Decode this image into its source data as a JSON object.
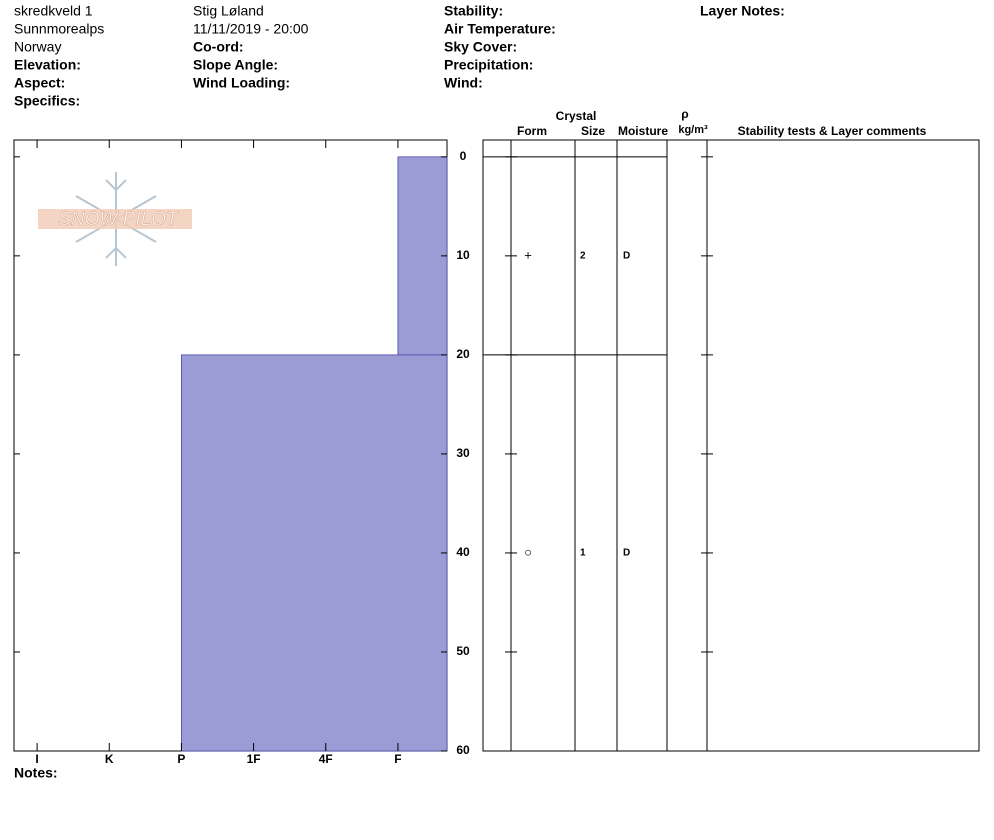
{
  "header": {
    "columns": [
      [
        "skredkveld 1",
        "Sunnmorealps",
        "Norway",
        "Elevation:",
        "Aspect:",
        "Specifics:"
      ],
      [
        "Stig Løland",
        "11/11/2019 - 20:00",
        "Co-ord:",
        "Slope Angle:",
        "Wind Loading:"
      ],
      [
        "Stability:",
        "Air Temperature:",
        "Sky Cover:",
        "Precipitation:",
        "Wind:"
      ],
      [
        "Layer Notes:"
      ]
    ]
  },
  "logo": "SNOW PILOT",
  "chart_data": {
    "type": "snow-profile",
    "ylim": [
      -1.7,
      60
    ],
    "yticks": [
      0,
      10,
      20,
      30,
      40,
      50,
      60
    ],
    "xlim": [
      6.32,
      0.32
    ],
    "xticks": [
      {
        "value": 6,
        "label": "I"
      },
      {
        "value": 5,
        "label": "K"
      },
      {
        "value": 4,
        "label": "P"
      },
      {
        "value": 3,
        "label": "1F"
      },
      {
        "value": 2,
        "label": "4F"
      },
      {
        "value": 1,
        "label": "F"
      }
    ],
    "color": "#9b9bd6",
    "layers": [
      {
        "top": 0,
        "bottom": 20,
        "hardness": 1,
        "form": "+",
        "size": 2,
        "moisture": "D"
      },
      {
        "top": 20,
        "bottom": 60,
        "hardness": 4,
        "form": "○",
        "size": 1,
        "moisture": "D"
      }
    ],
    "table_headers": {
      "crystal": "Crystal",
      "form": "Form",
      "size": "Size",
      "moisture": "Moisture",
      "density": "ρ",
      "density_unit": "kg/m³",
      "comments": "Stability tests & Layer comments"
    }
  },
  "notes_label": "Notes:"
}
